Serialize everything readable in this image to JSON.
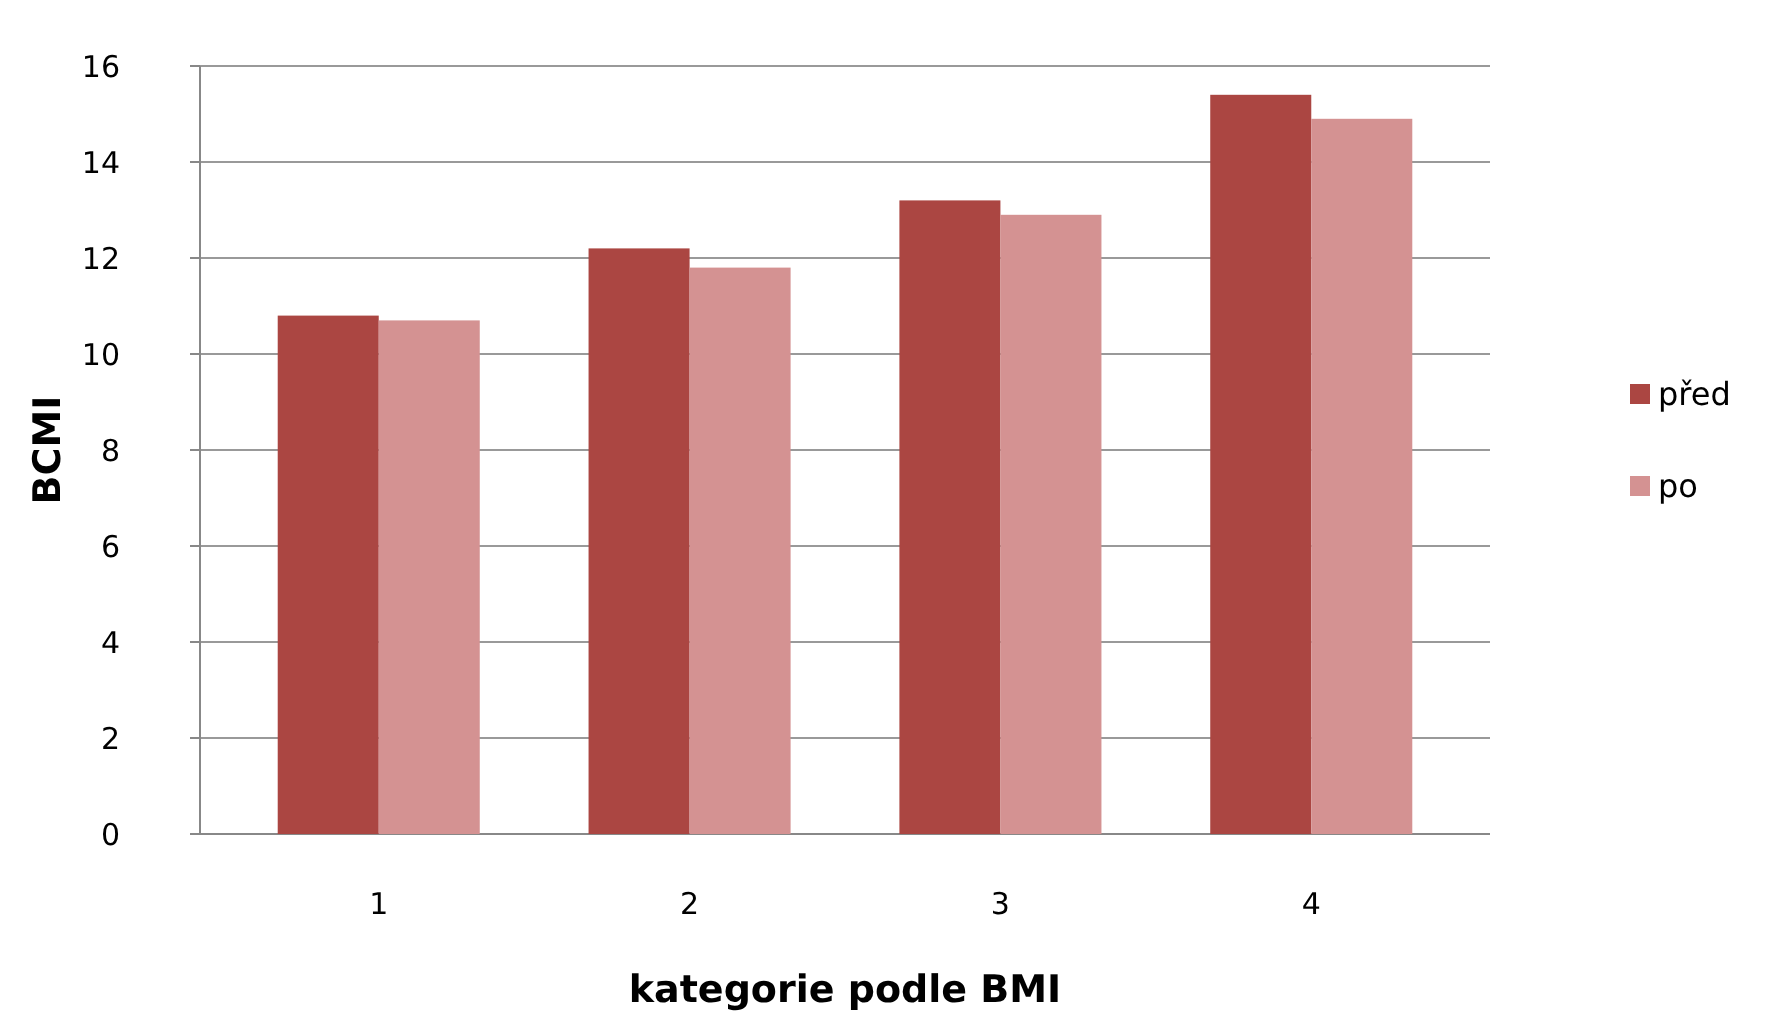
{
  "chart_data": {
    "type": "bar",
    "xlabel": "kategorie podle BMI",
    "ylabel": "BCMI",
    "categories": [
      "1",
      "2",
      "3",
      "4"
    ],
    "series": [
      {
        "name": "před",
        "color": "#ab4642",
        "values": [
          10.8,
          12.2,
          13.2,
          15.4
        ]
      },
      {
        "name": "po",
        "color": "#d49292",
        "values": [
          10.7,
          11.8,
          12.9,
          14.9
        ]
      }
    ],
    "ylim": [
      0,
      16
    ],
    "yticks": [
      0,
      2,
      4,
      6,
      8,
      10,
      12,
      14,
      16
    ],
    "grid": "y",
    "legend": "right"
  }
}
